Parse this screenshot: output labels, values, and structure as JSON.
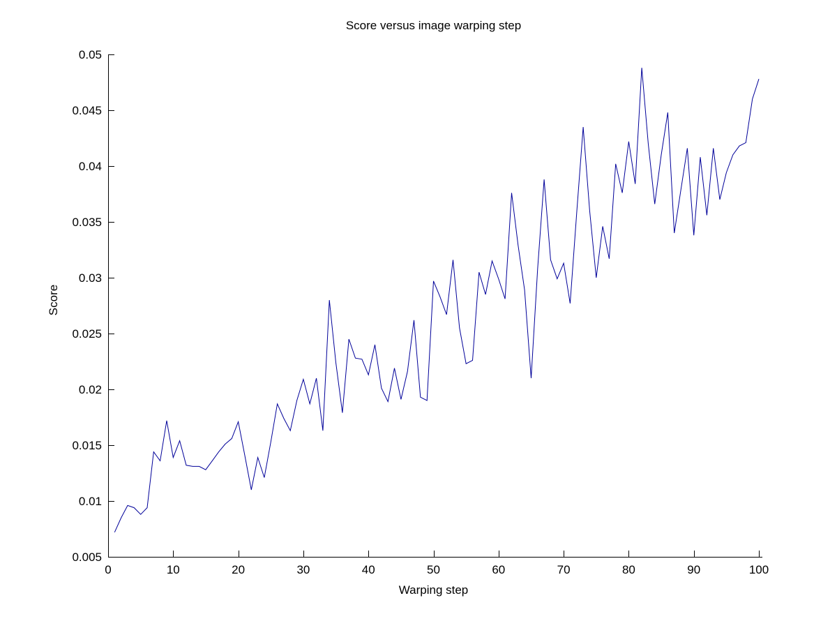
{
  "figure": {
    "title": "Score versus image warping step",
    "xlabel": "Warping step",
    "ylabel": "Score"
  },
  "chart_data": {
    "type": "line",
    "title": "Score versus image warping step",
    "xlabel": "Warping step",
    "ylabel": "Score",
    "legend": null,
    "grid": false,
    "line_color": "#000099",
    "axis_color": "#000000",
    "background_color": "#ffffff",
    "xlim": [
      0,
      100
    ],
    "ylim": [
      0.005,
      0.05
    ],
    "xticks": [
      0,
      10,
      20,
      30,
      40,
      50,
      60,
      70,
      80,
      90,
      100
    ],
    "xtick_labels": [
      "0",
      "10",
      "20",
      "30",
      "40",
      "50",
      "60",
      "70",
      "80",
      "90",
      "100"
    ],
    "yticks": [
      0.005,
      0.01,
      0.015,
      0.02,
      0.025,
      0.03,
      0.035,
      0.04,
      0.045,
      0.05
    ],
    "ytick_labels": [
      "0.005",
      "0.01",
      "0.015",
      "0.02",
      "0.025",
      "0.03",
      "0.035",
      "0.04",
      "0.045",
      "0.05"
    ],
    "x": [
      1,
      2,
      3,
      4,
      5,
      6,
      7,
      8,
      9,
      10,
      11,
      12,
      13,
      14,
      15,
      16,
      17,
      18,
      19,
      20,
      21,
      22,
      23,
      24,
      25,
      26,
      27,
      28,
      29,
      30,
      31,
      32,
      33,
      34,
      35,
      36,
      37,
      38,
      39,
      40,
      41,
      42,
      43,
      44,
      45,
      46,
      47,
      48,
      49,
      50,
      51,
      52,
      53,
      54,
      55,
      56,
      57,
      58,
      59,
      60,
      61,
      62,
      63,
      64,
      65,
      66,
      67,
      68,
      69,
      70,
      71,
      72,
      73,
      74,
      75,
      76,
      77,
      78,
      79,
      80,
      81,
      82,
      83,
      84,
      85,
      86,
      87,
      88,
      89,
      90,
      91,
      92,
      93,
      94,
      95,
      96,
      97,
      98,
      99,
      100
    ],
    "values": [
      0.0072,
      0.0085,
      0.0096,
      0.0094,
      0.0088,
      0.0094,
      0.0144,
      0.0136,
      0.0172,
      0.0139,
      0.0154,
      0.0132,
      0.0131,
      0.0131,
      0.0128,
      0.0136,
      0.0144,
      0.0151,
      0.0156,
      0.0171,
      0.0141,
      0.011,
      0.0139,
      0.0121,
      0.0153,
      0.0187,
      0.0174,
      0.0163,
      0.019,
      0.0209,
      0.0187,
      0.021,
      0.0163,
      0.028,
      0.0224,
      0.0179,
      0.0245,
      0.0228,
      0.0227,
      0.0213,
      0.024,
      0.0201,
      0.0189,
      0.0219,
      0.0191,
      0.0216,
      0.0262,
      0.0193,
      0.019,
      0.0297,
      0.0283,
      0.0267,
      0.0316,
      0.0255,
      0.0223,
      0.0226,
      0.0305,
      0.0285,
      0.0315,
      0.0299,
      0.0281,
      0.0376,
      0.0329,
      0.0289,
      0.021,
      0.0308,
      0.0388,
      0.0316,
      0.0299,
      0.0313,
      0.0277,
      0.0358,
      0.0435,
      0.036,
      0.03,
      0.0346,
      0.0317,
      0.0402,
      0.0376,
      0.0422,
      0.0384,
      0.0488,
      0.042,
      0.0366,
      0.041,
      0.0448,
      0.034,
      0.0378,
      0.0416,
      0.0338,
      0.0408,
      0.0356,
      0.0416,
      0.037,
      0.0394,
      0.041,
      0.0418,
      0.0421,
      0.046,
      0.0478
    ]
  }
}
